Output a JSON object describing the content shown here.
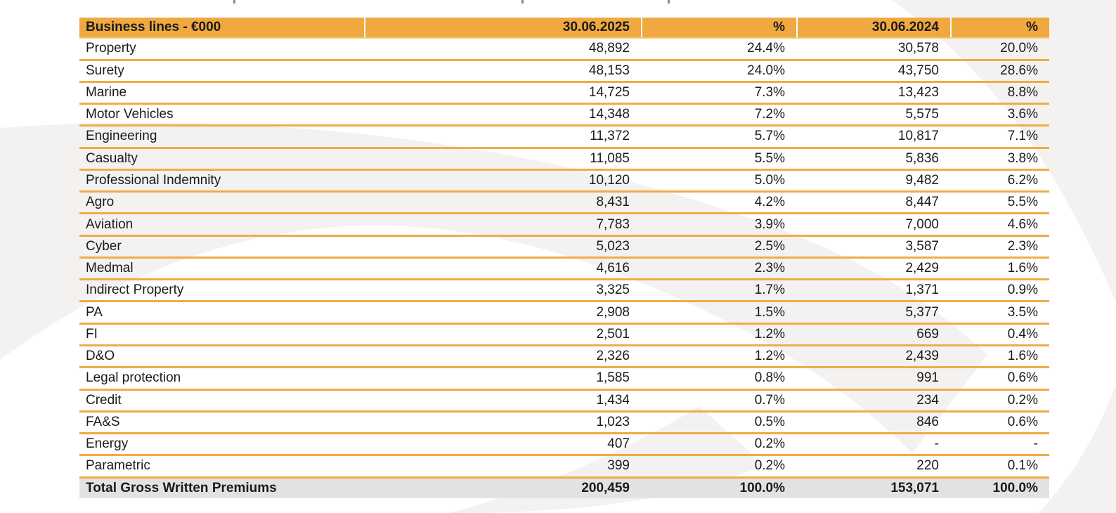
{
  "colors": {
    "header_bg": "#EFA940",
    "row_separator": "#F1AB46",
    "total_bg": "#E4E2E0",
    "text": "#1B1B1B",
    "watermark_gray": "#F4F2F0"
  },
  "table": {
    "columns": [
      "Business lines - €000",
      "30.06.2025",
      "%",
      "30.06.2024",
      "%"
    ],
    "rows": [
      [
        "Property",
        "48,892",
        "24.4%",
        "30,578",
        "20.0%"
      ],
      [
        "Surety",
        "48,153",
        "24.0%",
        "43,750",
        "28.6%"
      ],
      [
        "Marine",
        "14,725",
        "7.3%",
        "13,423",
        "8.8%"
      ],
      [
        "Motor Vehicles",
        "14,348",
        "7.2%",
        "5,575",
        "3.6%"
      ],
      [
        "Engineering",
        "11,372",
        "5.7%",
        "10,817",
        "7.1%"
      ],
      [
        "Casualty",
        "11,085",
        "5.5%",
        "5,836",
        "3.8%"
      ],
      [
        "Professional Indemnity",
        "10,120",
        "5.0%",
        "9,482",
        "6.2%"
      ],
      [
        "Agro",
        "8,431",
        "4.2%",
        "8,447",
        "5.5%"
      ],
      [
        "Aviation",
        "7,783",
        "3.9%",
        "7,000",
        "4.6%"
      ],
      [
        "Cyber",
        "5,023",
        "2.5%",
        "3,587",
        "2.3%"
      ],
      [
        "Medmal",
        "4,616",
        "2.3%",
        "2,429",
        "1.6%"
      ],
      [
        "Indirect Property",
        "3,325",
        "1.7%",
        "1,371",
        "0.9%"
      ],
      [
        "PA",
        "2,908",
        "1.5%",
        "5,377",
        "3.5%"
      ],
      [
        "FI",
        "2,501",
        "1.2%",
        "669",
        "0.4%"
      ],
      [
        "D&O",
        "2,326",
        "1.2%",
        "2,439",
        "1.6%"
      ],
      [
        "Legal protection",
        "1,585",
        "0.8%",
        "991",
        "0.6%"
      ],
      [
        "Credit",
        "1,434",
        "0.7%",
        "234",
        "0.2%"
      ],
      [
        "FA&S",
        "1,023",
        "0.5%",
        "846",
        "0.6%"
      ],
      [
        "Energy",
        "407",
        "0.2%",
        "-",
        "-"
      ],
      [
        "Parametric",
        "399",
        "0.2%",
        "220",
        "0.1%"
      ]
    ],
    "total_row": [
      "Total Gross Written Premiums",
      "200,459",
      "100.0%",
      "153,071",
      "100.0%"
    ]
  }
}
